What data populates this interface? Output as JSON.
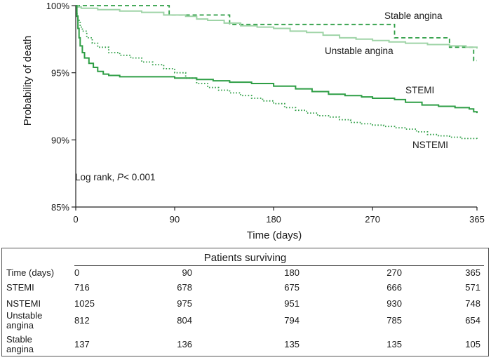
{
  "chart_data": {
    "type": "line",
    "ylabel": "Probability of death",
    "xlabel": "Time (days)",
    "xlim": [
      0,
      365
    ],
    "ylim": [
      85,
      100
    ],
    "x_ticks": [
      0,
      90,
      180,
      270,
      365
    ],
    "y_ticks": [
      {
        "value": 85,
        "label": "85%"
      },
      {
        "value": 90,
        "label": "90%"
      },
      {
        "value": 95,
        "label": "95%"
      },
      {
        "value": 100,
        "label": "100%"
      }
    ],
    "grid": false,
    "annotation": {
      "prefix": "Log rank, ",
      "p": "P",
      "rest": "< 0.001"
    },
    "series": [
      {
        "name": "Stable angina",
        "color": "#2e9e45",
        "style": "dashed",
        "points": [
          [
            0,
            100
          ],
          [
            85,
            100
          ],
          [
            85,
            99.3
          ],
          [
            140,
            99.3
          ],
          [
            140,
            98.6
          ],
          [
            290,
            98.6
          ],
          [
            290,
            97.6
          ],
          [
            340,
            97.6
          ],
          [
            340,
            96.9
          ],
          [
            362,
            96.9
          ],
          [
            362,
            95.9
          ],
          [
            365,
            95.9
          ]
        ]
      },
      {
        "name": "Unstable angina",
        "color": "#9fd4a7",
        "style": "solid",
        "points": [
          [
            0,
            100
          ],
          [
            2,
            99.9
          ],
          [
            5,
            99.8
          ],
          [
            20,
            99.7
          ],
          [
            40,
            99.6
          ],
          [
            60,
            99.5
          ],
          [
            80,
            99.3
          ],
          [
            100,
            99.2
          ],
          [
            110,
            99.0
          ],
          [
            120,
            98.9
          ],
          [
            135,
            98.7
          ],
          [
            150,
            98.5
          ],
          [
            165,
            98.4
          ],
          [
            180,
            98.3
          ],
          [
            195,
            98.1
          ],
          [
            210,
            98.0
          ],
          [
            225,
            97.8
          ],
          [
            240,
            97.6
          ],
          [
            255,
            97.5
          ],
          [
            270,
            97.4
          ],
          [
            285,
            97.3
          ],
          [
            300,
            97.2
          ],
          [
            320,
            97.1
          ],
          [
            340,
            97.0
          ],
          [
            355,
            96.9
          ],
          [
            365,
            96.8
          ]
        ]
      },
      {
        "name": "STEMI",
        "color": "#2e9e45",
        "style": "solid",
        "points": [
          [
            0,
            100
          ],
          [
            1,
            99.2
          ],
          [
            2,
            98.3
          ],
          [
            3,
            97.6
          ],
          [
            4,
            97.0
          ],
          [
            6,
            96.5
          ],
          [
            8,
            96.1
          ],
          [
            12,
            95.7
          ],
          [
            16,
            95.4
          ],
          [
            20,
            95.1
          ],
          [
            25,
            94.9
          ],
          [
            30,
            94.8
          ],
          [
            40,
            94.7
          ],
          [
            60,
            94.7
          ],
          [
            90,
            94.6
          ],
          [
            110,
            94.5
          ],
          [
            125,
            94.4
          ],
          [
            140,
            94.3
          ],
          [
            160,
            94.2
          ],
          [
            180,
            94.0
          ],
          [
            200,
            93.8
          ],
          [
            215,
            93.6
          ],
          [
            230,
            93.4
          ],
          [
            245,
            93.3
          ],
          [
            260,
            93.2
          ],
          [
            270,
            93.1
          ],
          [
            290,
            93.0
          ],
          [
            300,
            92.8
          ],
          [
            315,
            92.6
          ],
          [
            330,
            92.5
          ],
          [
            345,
            92.4
          ],
          [
            358,
            92.3
          ],
          [
            362,
            92.1
          ],
          [
            365,
            92.0
          ]
        ]
      },
      {
        "name": "NSTEMI",
        "color": "#2e9e45",
        "style": "dotted",
        "points": [
          [
            0,
            100
          ],
          [
            1,
            99.4
          ],
          [
            2,
            98.9
          ],
          [
            4,
            98.4
          ],
          [
            6,
            98.1
          ],
          [
            10,
            97.6
          ],
          [
            15,
            97.2
          ],
          [
            20,
            96.9
          ],
          [
            30,
            96.5
          ],
          [
            40,
            96.3
          ],
          [
            50,
            96.1
          ],
          [
            60,
            95.8
          ],
          [
            70,
            95.6
          ],
          [
            80,
            95.3
          ],
          [
            90,
            95.0
          ],
          [
            100,
            94.6
          ],
          [
            110,
            94.2
          ],
          [
            120,
            93.9
          ],
          [
            130,
            93.7
          ],
          [
            140,
            93.5
          ],
          [
            150,
            93.3
          ],
          [
            160,
            93.1
          ],
          [
            170,
            92.9
          ],
          [
            180,
            92.7
          ],
          [
            190,
            92.4
          ],
          [
            200,
            92.2
          ],
          [
            210,
            92.0
          ],
          [
            220,
            91.8
          ],
          [
            230,
            91.7
          ],
          [
            240,
            91.5
          ],
          [
            250,
            91.3
          ],
          [
            260,
            91.2
          ],
          [
            270,
            91.1
          ],
          [
            280,
            91.0
          ],
          [
            290,
            90.9
          ],
          [
            300,
            90.8
          ],
          [
            310,
            90.6
          ],
          [
            320,
            90.4
          ],
          [
            330,
            90.3
          ],
          [
            340,
            90.2
          ],
          [
            350,
            90.1
          ],
          [
            365,
            90.0
          ]
        ]
      }
    ]
  },
  "table": {
    "title": "Patients surviving",
    "header_label": "Time (days)",
    "columns": [
      "0",
      "90",
      "180",
      "270",
      "365"
    ],
    "rows": [
      {
        "label": [
          "STEMI"
        ],
        "values": [
          "716",
          "678",
          "675",
          "666",
          "571"
        ]
      },
      {
        "label": [
          "NSTEMI"
        ],
        "values": [
          "1025",
          "975",
          "951",
          "930",
          "748"
        ]
      },
      {
        "label": [
          "Unstable",
          "angina"
        ],
        "values": [
          "812",
          "804",
          "794",
          "785",
          "654"
        ]
      },
      {
        "label": [
          "Stable",
          "angina"
        ],
        "values": [
          "137",
          "136",
          "135",
          "135",
          "105"
        ]
      }
    ]
  }
}
